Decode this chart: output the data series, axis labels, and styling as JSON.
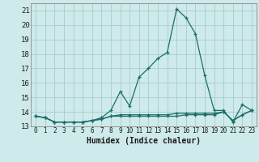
{
  "xlabel": "Humidex (Indice chaleur)",
  "background_color": "#ceeaea",
  "grid_color": "#aacccc",
  "line_color": "#1a6e6a",
  "xlim": [
    -0.5,
    23.5
  ],
  "ylim": [
    13,
    21.5
  ],
  "yticks": [
    13,
    14,
    15,
    16,
    17,
    18,
    19,
    20,
    21
  ],
  "xtick_labels": [
    "0",
    "1",
    "2",
    "3",
    "4",
    "5",
    "6",
    "7",
    "8",
    "9",
    "10",
    "11",
    "12",
    "13",
    "14",
    "15",
    "16",
    "17",
    "18",
    "19",
    "20",
    "21",
    "22",
    "23"
  ],
  "series": [
    {
      "x": [
        0,
        1,
        2,
        3,
        4,
        5,
        6,
        7,
        8,
        9,
        10,
        11,
        12,
        13,
        14,
        15,
        16,
        17,
        18,
        19,
        20,
        21,
        22,
        23
      ],
      "y": [
        13.7,
        13.6,
        13.3,
        13.3,
        13.3,
        13.3,
        13.4,
        13.6,
        14.1,
        15.4,
        14.4,
        16.4,
        17.0,
        17.7,
        18.1,
        21.1,
        20.5,
        19.4,
        16.5,
        14.1,
        14.1,
        13.3,
        14.5,
        14.1
      ]
    },
    {
      "x": [
        0,
        1,
        2,
        3,
        4,
        5,
        6,
        7,
        8,
        9,
        10,
        11,
        12,
        13,
        14,
        15,
        16,
        17,
        18,
        19,
        20,
        21,
        22,
        23
      ],
      "y": [
        13.7,
        13.6,
        13.3,
        13.3,
        13.3,
        13.3,
        13.4,
        13.5,
        13.7,
        13.7,
        13.7,
        13.7,
        13.7,
        13.7,
        13.7,
        13.7,
        13.8,
        13.8,
        13.8,
        13.8,
        14.0,
        13.4,
        13.8,
        14.1
      ]
    },
    {
      "x": [
        0,
        1,
        2,
        3,
        4,
        5,
        6,
        7,
        8,
        9,
        10,
        11,
        12,
        13,
        14,
        15,
        16,
        17,
        18,
        19,
        20,
        21,
        22,
        23
      ],
      "y": [
        13.7,
        13.6,
        13.3,
        13.3,
        13.3,
        13.3,
        13.4,
        13.5,
        13.7,
        13.8,
        13.8,
        13.8,
        13.8,
        13.8,
        13.8,
        13.9,
        13.9,
        13.9,
        13.9,
        13.9,
        14.0,
        13.4,
        13.8,
        14.1
      ]
    }
  ]
}
